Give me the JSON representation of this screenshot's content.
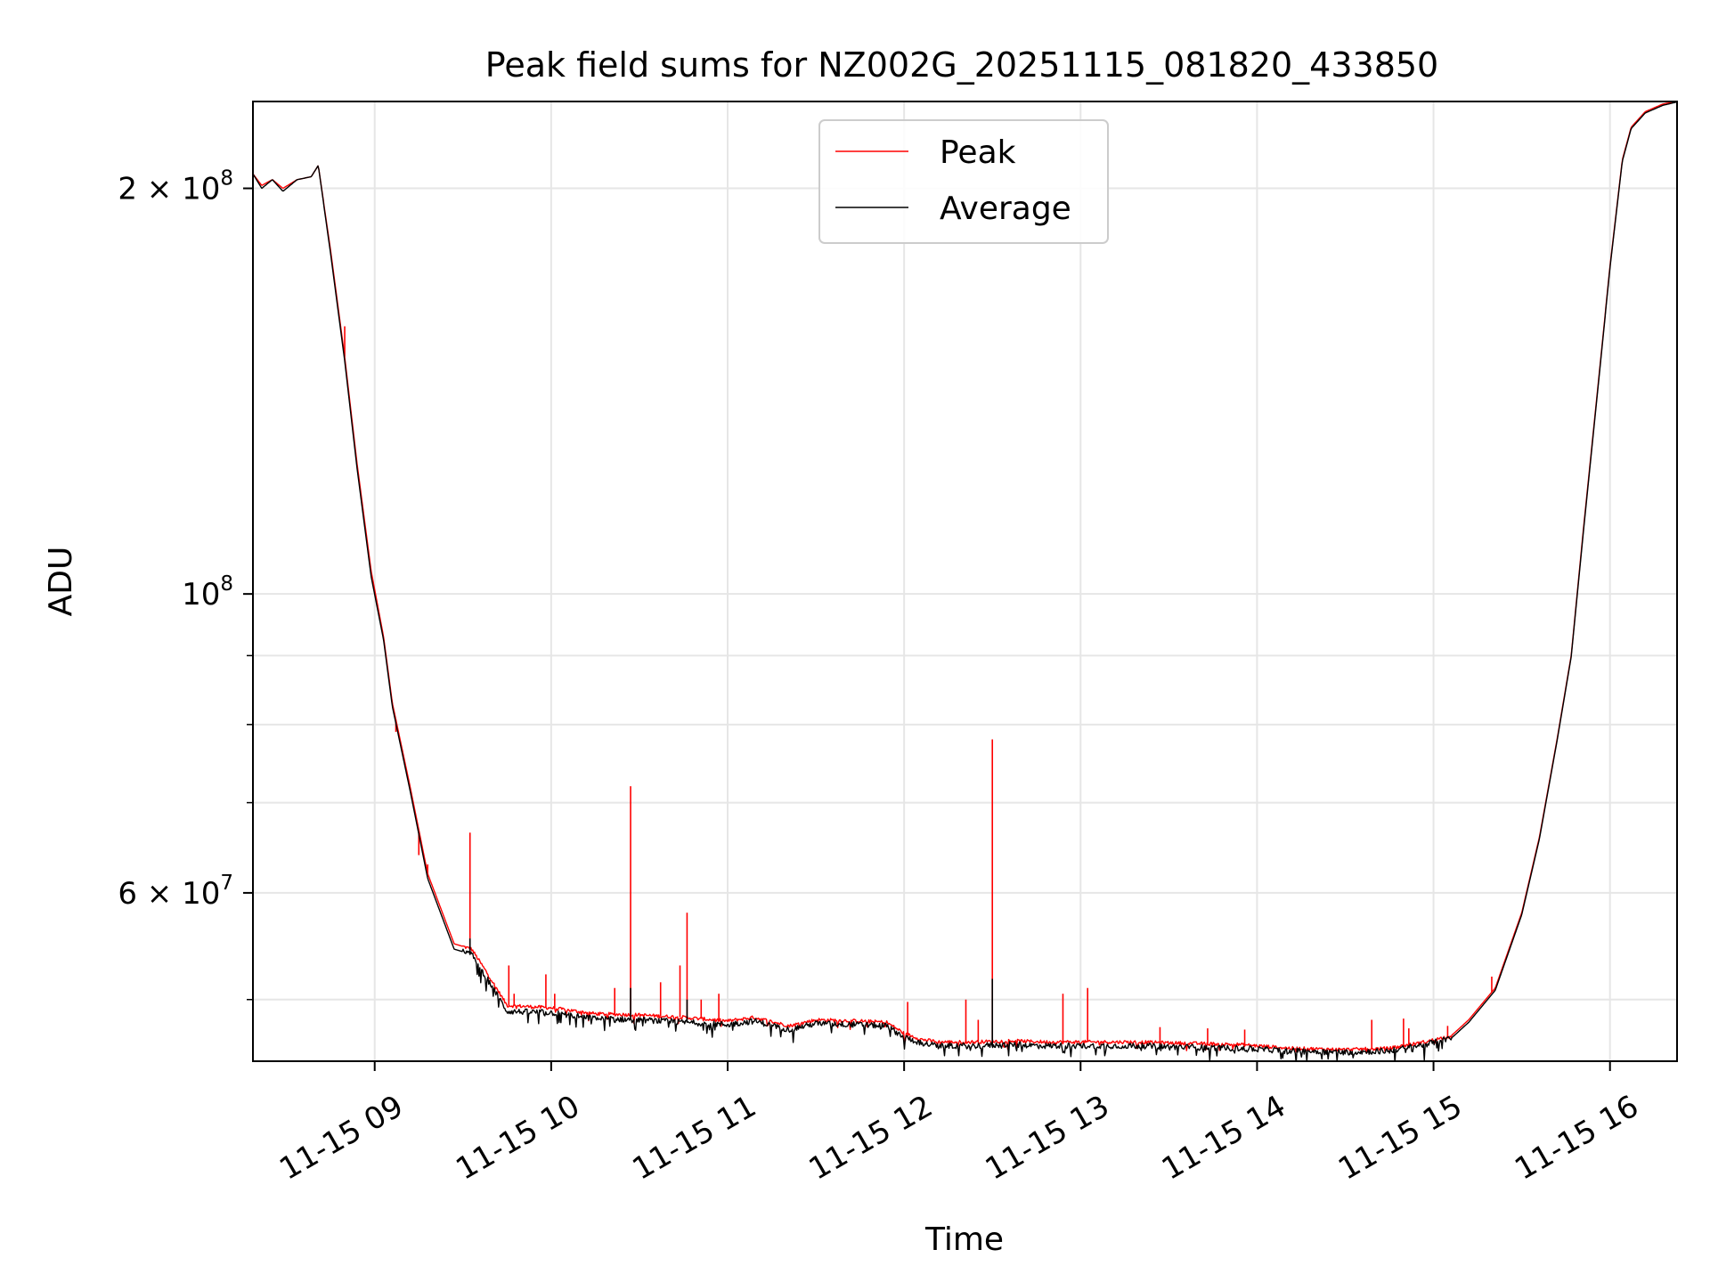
{
  "chart_data": {
    "type": "line",
    "title": "Peak field sums for NZ002G_20251115_081820_433850",
    "xlabel": "Time",
    "ylabel": "ADU",
    "yscale": "log",
    "grid": true,
    "legend_position": "top-center",
    "x_unit": "hours (decimal, 2025-11-15)",
    "xlim": [
      8.31,
      16.38
    ],
    "ylim": [
      45000000,
      232000000
    ],
    "x_ticks": [
      {
        "value": 9,
        "label": "11-15 09"
      },
      {
        "value": 10,
        "label": "11-15 10"
      },
      {
        "value": 11,
        "label": "11-15 11"
      },
      {
        "value": 12,
        "label": "11-15 12"
      },
      {
        "value": 13,
        "label": "11-15 13"
      },
      {
        "value": 14,
        "label": "11-15 14"
      },
      {
        "value": 15,
        "label": "11-15 15"
      },
      {
        "value": 16,
        "label": "11-15 16"
      }
    ],
    "y_ticks": [
      {
        "value": 200000000,
        "base": "2 × 10",
        "exp": "8"
      },
      {
        "value": 100000000,
        "base": "10",
        "exp": "8"
      },
      {
        "value": 60000000,
        "base": "6 × 10",
        "exp": "7"
      }
    ],
    "y_minor_ticks": [
      50000000,
      70000000,
      80000000,
      90000000
    ],
    "series": [
      {
        "name": "Peak",
        "color": "#ff0000",
        "x": [
          8.31,
          8.36,
          8.42,
          8.48,
          8.56,
          8.64,
          8.68,
          8.75,
          8.83,
          8.9,
          8.98,
          9.05,
          9.1,
          9.2,
          9.3,
          9.45,
          9.55,
          9.65,
          9.75,
          10.0,
          10.25,
          10.5,
          10.75,
          11.0,
          11.15,
          11.35,
          11.5,
          11.75,
          11.9,
          12.0,
          12.1,
          12.2,
          12.4,
          12.6,
          12.8,
          13.0,
          13.3,
          13.6,
          13.9,
          14.2,
          14.5,
          14.75,
          14.95,
          15.1,
          15.2,
          15.35,
          15.5,
          15.6,
          15.7,
          15.78,
          15.85,
          15.93,
          16.0,
          16.07,
          16.12,
          16.2,
          16.3,
          16.38
        ],
        "values": [
          205000000,
          201000000,
          203000000,
          200000000,
          203000000,
          204000000,
          208000000,
          180000000,
          150000000,
          125000000,
          104000000,
          93000000,
          83000000,
          72000000,
          62000000,
          55000000,
          54500000,
          52000000,
          49500000,
          49300000,
          48800000,
          48700000,
          48500000,
          48200000,
          48500000,
          47800000,
          48300000,
          48200000,
          48100000,
          47200000,
          46700000,
          46500000,
          46500000,
          46600000,
          46500000,
          46500000,
          46500000,
          46400000,
          46300000,
          46000000,
          45900000,
          46000000,
          46500000,
          47000000,
          48300000,
          51000000,
          58000000,
          66000000,
          78000000,
          90000000,
          112000000,
          142000000,
          175000000,
          210000000,
          222000000,
          228000000,
          231000000,
          232000000
        ],
        "spikes": [
          {
            "x": 8.83,
            "value": 158000000
          },
          {
            "x": 9.12,
            "value": 79000000
          },
          {
            "x": 9.25,
            "value": 64000000
          },
          {
            "x": 9.3,
            "value": 63000000
          },
          {
            "x": 9.54,
            "value": 66500000
          },
          {
            "x": 9.76,
            "value": 53000000
          },
          {
            "x": 9.79,
            "value": 50500000
          },
          {
            "x": 9.97,
            "value": 52200000
          },
          {
            "x": 10.02,
            "value": 50500000
          },
          {
            "x": 10.36,
            "value": 51000000
          },
          {
            "x": 10.45,
            "value": 72000000
          },
          {
            "x": 10.62,
            "value": 51500000
          },
          {
            "x": 10.73,
            "value": 53000000
          },
          {
            "x": 10.77,
            "value": 58000000
          },
          {
            "x": 10.85,
            "value": 50000000
          },
          {
            "x": 10.95,
            "value": 50500000
          },
          {
            "x": 12.02,
            "value": 49800000
          },
          {
            "x": 12.35,
            "value": 50000000
          },
          {
            "x": 12.42,
            "value": 48300000
          },
          {
            "x": 12.5,
            "value": 78000000
          },
          {
            "x": 12.9,
            "value": 50500000
          },
          {
            "x": 13.04,
            "value": 51000000
          },
          {
            "x": 13.45,
            "value": 47700000
          },
          {
            "x": 13.72,
            "value": 47600000
          },
          {
            "x": 13.93,
            "value": 47500000
          },
          {
            "x": 14.65,
            "value": 48300000
          },
          {
            "x": 14.83,
            "value": 48400000
          },
          {
            "x": 14.86,
            "value": 47600000
          },
          {
            "x": 15.08,
            "value": 47800000
          },
          {
            "x": 15.33,
            "value": 52000000
          }
        ]
      },
      {
        "name": "Average",
        "color": "#000000",
        "x": [
          8.31,
          8.36,
          8.42,
          8.48,
          8.56,
          8.64,
          8.68,
          8.75,
          8.83,
          8.9,
          8.98,
          9.05,
          9.1,
          9.2,
          9.3,
          9.45,
          9.55,
          9.65,
          9.75,
          10.0,
          10.25,
          10.5,
          10.75,
          11.0,
          11.15,
          11.35,
          11.5,
          11.75,
          11.9,
          12.0,
          12.1,
          12.2,
          12.4,
          12.6,
          12.8,
          13.0,
          13.3,
          13.6,
          13.9,
          14.2,
          14.5,
          14.75,
          14.95,
          15.1,
          15.2,
          15.35,
          15.5,
          15.6,
          15.7,
          15.78,
          15.85,
          15.93,
          16.0,
          16.07,
          16.12,
          16.2,
          16.3,
          16.38
        ],
        "values": [
          205000000,
          200000000,
          203000000,
          199000000,
          203000000,
          204000000,
          208000000,
          179000000,
          149000000,
          124000000,
          103000000,
          92500000,
          82500000,
          71500000,
          61500000,
          54500000,
          54000000,
          51500000,
          49000000,
          48900000,
          48400000,
          48300000,
          48100000,
          47900000,
          48200000,
          47500000,
          48000000,
          47900000,
          47800000,
          46900000,
          46400000,
          46200000,
          46200000,
          46300000,
          46200000,
          46200000,
          46200000,
          46100000,
          46000000,
          45800000,
          45700000,
          45800000,
          46300000,
          46800000,
          48100000,
          50800000,
          57800000,
          65800000,
          77800000,
          89800000,
          111500000,
          141500000,
          174500000,
          209500000,
          221500000,
          227500000,
          230500000,
          231800000
        ],
        "spikes": [
          {
            "x": 9.54,
            "value": 55500000
          },
          {
            "x": 10.45,
            "value": 51000000
          },
          {
            "x": 10.77,
            "value": 50000000
          },
          {
            "x": 12.5,
            "value": 51800000
          }
        ]
      }
    ]
  }
}
